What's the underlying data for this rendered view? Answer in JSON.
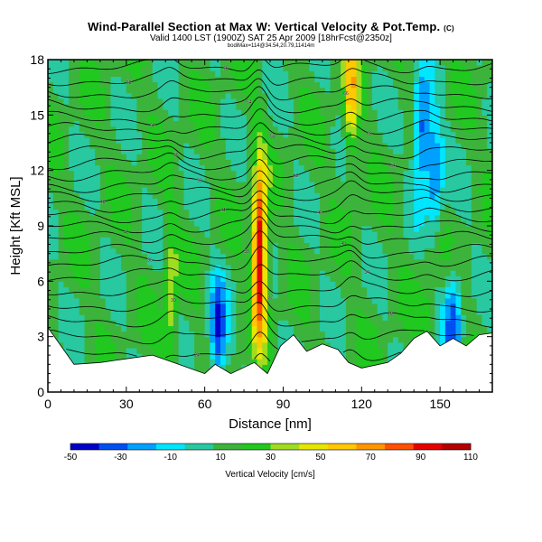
{
  "chart_data": {
    "type": "heatmap",
    "title": "Wind-Parallel Section at Max W: Vertical Velocity & Pot.Temp.",
    "title_mark": "(C)",
    "subtitle": "Valid 1400 LST (1900Z) SAT 25 Apr 2009 [18hrFcst@2350z]",
    "subtitle2": "bodiMax=114@34.54,20.79,11414m",
    "xlabel": "Distance [nm]",
    "ylabel": "Height [Kft MSL]",
    "xlim": [
      0,
      170
    ],
    "ylim": [
      0,
      18
    ],
    "xticks": [
      0,
      30,
      60,
      90,
      120,
      150
    ],
    "yticks": [
      0,
      3,
      6,
      9,
      12,
      15,
      18
    ],
    "colorbar": {
      "label": "Vertical Velocity [cm/s]",
      "ticks": [
        -50,
        -30,
        -10,
        10,
        30,
        50,
        70,
        90,
        110
      ],
      "colors": [
        "#0000c8",
        "#0050f0",
        "#00a0ff",
        "#00e6ff",
        "#28c8a0",
        "#3cb43c",
        "#20c820",
        "#a0dc20",
        "#e6e600",
        "#ffc800",
        "#ff9600",
        "#ff5000",
        "#e60000",
        "#b40000"
      ]
    },
    "updraft_maxima": [
      {
        "x": 81,
        "h": 7.5,
        "w": 110
      },
      {
        "x": 116,
        "h": 16.5,
        "w": 55
      },
      {
        "x": 47,
        "h": 5.0,
        "w": 40
      },
      {
        "x": 145,
        "h": 5.5,
        "w": 20
      }
    ],
    "downdraft_minima": [
      {
        "x": 65,
        "h": 3.0,
        "w": -40
      },
      {
        "x": 143,
        "h": 14.0,
        "w": -40
      },
      {
        "x": 148,
        "h": 12.0,
        "w": -30
      },
      {
        "x": 155,
        "h": 4.0,
        "w": -30
      }
    ],
    "terrain": [
      [
        0,
        3.5
      ],
      [
        10,
        1.5
      ],
      [
        20,
        1.6
      ],
      [
        30,
        1.8
      ],
      [
        40,
        2.0
      ],
      [
        50,
        1.5
      ],
      [
        60,
        1.0
      ],
      [
        64,
        1.5
      ],
      [
        70,
        1.0
      ],
      [
        79,
        1.6
      ],
      [
        84,
        1.0
      ],
      [
        89,
        2.5
      ],
      [
        94,
        3.1
      ],
      [
        99,
        2.2
      ],
      [
        105,
        2.6
      ],
      [
        111,
        2.3
      ],
      [
        115,
        1.6
      ],
      [
        120,
        1.3
      ],
      [
        130,
        1.6
      ],
      [
        135,
        2.1
      ],
      [
        140,
        2.9
      ],
      [
        145,
        3.3
      ],
      [
        150,
        2.5
      ],
      [
        155,
        2.9
      ],
      [
        160,
        2.5
      ],
      [
        165,
        3.1
      ],
      [
        170,
        3.2
      ]
    ],
    "theta_contours": [
      {
        "h0": 1.0,
        "label": "22"
      },
      {
        "h0": 2.0,
        "label": "24"
      },
      {
        "h0": 3.0,
        "label": "26"
      },
      {
        "h0": 3.9,
        "label": "28"
      },
      {
        "h0": 4.7,
        "label": "30"
      },
      {
        "h0": 5.5,
        "label": "32"
      },
      {
        "h0": 6.3,
        "label": "34"
      },
      {
        "h0": 7.0,
        "label": "36"
      },
      {
        "h0": 7.6,
        "label": "38"
      },
      {
        "h0": 8.3,
        "label": "40"
      },
      {
        "h0": 8.9,
        "label": "42"
      },
      {
        "h0": 9.5,
        "label": "44"
      },
      {
        "h0": 10.1,
        "label": "46"
      },
      {
        "h0": 10.7,
        "label": "48"
      },
      {
        "h0": 11.2,
        "label": "50"
      },
      {
        "h0": 11.8,
        "label": "52"
      },
      {
        "h0": 12.4,
        "label": "54"
      },
      {
        "h0": 13.0,
        "label": "56"
      },
      {
        "h0": 13.6,
        "label": "58"
      },
      {
        "h0": 14.2,
        "label": "60"
      },
      {
        "h0": 14.8,
        "label": "62"
      },
      {
        "h0": 15.5,
        "label": "64"
      },
      {
        "h0": 16.2,
        "label": "66"
      },
      {
        "h0": 16.9,
        "label": "68"
      },
      {
        "h0": 17.6,
        "label": "70"
      }
    ]
  }
}
